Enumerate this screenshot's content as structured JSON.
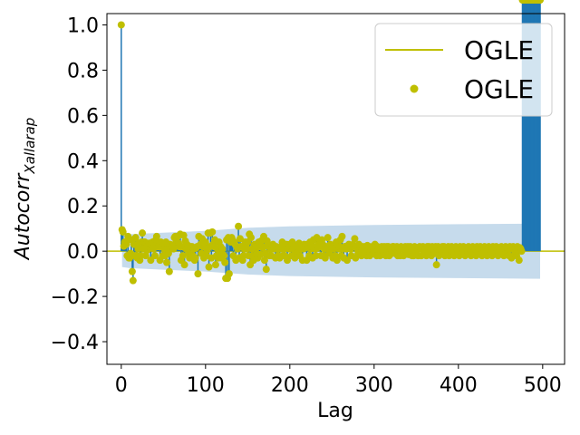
{
  "chart_data": {
    "type": "scatter",
    "xlabel": "Lag",
    "ylabel_main": "Autocorr",
    "ylabel_sub": "Xallarap",
    "xlim": [
      -17,
      526
    ],
    "ylim": [
      -0.5,
      1.05
    ],
    "xticks": [
      0,
      100,
      200,
      300,
      400,
      500
    ],
    "yticks": [
      -0.4,
      -0.2,
      0.0,
      0.2,
      0.4,
      0.6,
      0.8,
      1.0
    ],
    "ytick_labels": [
      "−0.4",
      "−0.2",
      "0.0",
      "0.2",
      "0.4",
      "0.6",
      "0.8",
      "1.0"
    ],
    "grid": false,
    "legend_position": "top-right",
    "legend": [
      {
        "label": "OGLE",
        "kind": "line"
      },
      {
        "label": "OGLE",
        "kind": "marker"
      }
    ],
    "colors": {
      "marker": "#bfbf00",
      "stem": "#1f77b4",
      "band": "#c6dbec"
    },
    "confidence_band": {
      "lags": [
        1,
        10,
        50,
        100,
        150,
        200,
        300,
        400,
        497
      ],
      "upper": [
        0.07,
        0.075,
        0.082,
        0.09,
        0.103,
        0.11,
        0.116,
        0.119,
        0.122
      ],
      "lower": [
        -0.07,
        -0.075,
        -0.082,
        -0.09,
        -0.103,
        -0.11,
        -0.116,
        -0.119,
        -0.122
      ]
    },
    "series": [
      {
        "lags": [
          0,
          1,
          2,
          3,
          4,
          5,
          6,
          7,
          8,
          9,
          10,
          11,
          12,
          13,
          14,
          15,
          16,
          17,
          18,
          19,
          20,
          21,
          22,
          23,
          24,
          25,
          26,
          27,
          28,
          29,
          30,
          31,
          32,
          33,
          34,
          35,
          36,
          37,
          38,
          39,
          40,
          41,
          42,
          43,
          44,
          45,
          46,
          47,
          48,
          49,
          50,
          51,
          52,
          53,
          54,
          55,
          56,
          57,
          58,
          59,
          60,
          61,
          62,
          63,
          64,
          65,
          66,
          67,
          68,
          69,
          70,
          71,
          72,
          73,
          74,
          75,
          76,
          77,
          78,
          79,
          80,
          81,
          82,
          83,
          84,
          85,
          86,
          87,
          88,
          89,
          90,
          91,
          92,
          93,
          94,
          95,
          96,
          97,
          98,
          99,
          100,
          101,
          102,
          103,
          104,
          105,
          106,
          107,
          108,
          109,
          110,
          111,
          112,
          113,
          114,
          115,
          116,
          117,
          118,
          119,
          120,
          121,
          122,
          123,
          124,
          125,
          126,
          127,
          128,
          129,
          130,
          131,
          132,
          133,
          134,
          135,
          136,
          137,
          138,
          139,
          140,
          141,
          142,
          143,
          144,
          145,
          146,
          147,
          148,
          149,
          150,
          151,
          152,
          153,
          154,
          155,
          156,
          157,
          158,
          159,
          160,
          161,
          162,
          163,
          164,
          165,
          166,
          167,
          168,
          169,
          170,
          171,
          172,
          173,
          174,
          175,
          176,
          177,
          178,
          179,
          180,
          181,
          182,
          183,
          184,
          185,
          186,
          187,
          188,
          189,
          190,
          191,
          192,
          193,
          194,
          195,
          196,
          197,
          198,
          199,
          200,
          201,
          202,
          203,
          204,
          205,
          206,
          207,
          208,
          209,
          210,
          211,
          212,
          213,
          214,
          215,
          216,
          217,
          218,
          219,
          220,
          221,
          222,
          223,
          224,
          225,
          226,
          227,
          228,
          229,
          230,
          231,
          232,
          233,
          234,
          235,
          236,
          237,
          238,
          239,
          240,
          241,
          242,
          243,
          244,
          245,
          246,
          247,
          248,
          249,
          250,
          251,
          252,
          253,
          254,
          255,
          256,
          257,
          258,
          259,
          260,
          261,
          262,
          263,
          264,
          265,
          266,
          267,
          268,
          269,
          270,
          271,
          272,
          273,
          274,
          275,
          276,
          277,
          278,
          279,
          280,
          281,
          282,
          283,
          284,
          285,
          286,
          287,
          288,
          289,
          290,
          291,
          292,
          293,
          294,
          295,
          296,
          297,
          298,
          299,
          300,
          301,
          302,
          303,
          304,
          305,
          306,
          307,
          308,
          309,
          310,
          311,
          312,
          313,
          314,
          315,
          316,
          317,
          318,
          319,
          320,
          321,
          322,
          323,
          324,
          325,
          326,
          327,
          328,
          329,
          330,
          331,
          332,
          333,
          334,
          335,
          336,
          337,
          338,
          339,
          340,
          341,
          342,
          343,
          344,
          345,
          346,
          347,
          348,
          349,
          350,
          351,
          352,
          353,
          354,
          355,
          356,
          357,
          358,
          359,
          360,
          361,
          362,
          363,
          364,
          365,
          366,
          367,
          368,
          369,
          370,
          371,
          372,
          373,
          374,
          375,
          376,
          377,
          378,
          379,
          380,
          381,
          382,
          383,
          384,
          385,
          386,
          387,
          388,
          389,
          390,
          391,
          392,
          393,
          394,
          395,
          396,
          397,
          398,
          399,
          400,
          401,
          402,
          403,
          404,
          405,
          406,
          407,
          408,
          409,
          410,
          411,
          412,
          413,
          414,
          415,
          416,
          417,
          418,
          419,
          420,
          421,
          422,
          423,
          424,
          425,
          426,
          427,
          428,
          429,
          430,
          431,
          432,
          433,
          434,
          435,
          436,
          437,
          438,
          439,
          440,
          441,
          442,
          443,
          444,
          445,
          446,
          447,
          448,
          449,
          450,
          451,
          452,
          453,
          454,
          455,
          456,
          457,
          458,
          459,
          460,
          461,
          462,
          463,
          464,
          465,
          466,
          467,
          468,
          469,
          470,
          471,
          472,
          473,
          474,
          475,
          476,
          477,
          478,
          479,
          480,
          481,
          482,
          483,
          484,
          485,
          486,
          487,
          488,
          489,
          490,
          491,
          492,
          493,
          494,
          495,
          496,
          497
        ],
        "values": [
          1,
          0.095,
          0.085,
          0.022,
          0.04,
          0.04,
          0.03,
          -0.02,
          0.065,
          -0.03,
          -0.03,
          -0.01,
          0.05,
          -0.09,
          -0.13,
          0.03,
          -0.02,
          0.06,
          -0.02,
          -0.03,
          0.01,
          0.035,
          -0.04,
          -0.02,
          0.04,
          0.08,
          0.01,
          0.04,
          0.04,
          -0.02,
          0.035,
          0.005,
          0.02,
          0.035,
          0.03,
          -0.04,
          0.02,
          0.04,
          0.01,
          0.035,
          -0.02,
          0.05,
          0.065,
          0.02,
          0.02,
          0.02,
          -0.04,
          0.04,
          0.02,
          -0.02,
          0.035,
          0.01,
          -0.02,
          0.04,
          -0.05,
          0.01,
          -0.01,
          -0.09,
          0.03,
          0.01,
          0.02,
          0.02,
          0.01,
          0.06,
          0.065,
          0.04,
          0.035,
          0.065,
          0.035,
          0.02,
          0.075,
          -0.04,
          0.02,
          -0.02,
          0.07,
          -0.06,
          0.045,
          0.01,
          0.03,
          0.02,
          -0.01,
          -0.03,
          0.02,
          -0.02,
          0.02,
          -0.02,
          0.01,
          -0.04,
          -0.03,
          0.015,
          0.02,
          -0.1,
          0.065,
          0.025,
          0.03,
          -0.01,
          0.055,
          0.02,
          -0.03,
          0.02,
          0.04,
          -0.02,
          0.005,
          0.08,
          -0.07,
          0.02,
          0.08,
          -0.03,
          0.085,
          0.03,
          0.02,
          0.05,
          -0.06,
          -0.02,
          0.01,
          -0.03,
          0.04,
          -0.01,
          0.02,
          -0.03,
          0.01,
          -0.015,
          -0.02,
          -0.05,
          -0.12,
          0.05,
          -0.12,
          0.06,
          -0.1,
          0.045,
          0.04,
          0.06,
          0.05,
          -0.02,
          0.04,
          0.03,
          -0.04,
          0.02,
          0.01,
          0.11,
          -0.03,
          0.055,
          0.02,
          0.02,
          -0.04,
          -0.02,
          0.01,
          0.04,
          0.02,
          0.01,
          0.04,
          -0.02,
          0.075,
          -0.06,
          0.06,
          0.01,
          -0.02,
          -0.04,
          0.03,
          0.01,
          0.02,
          -0.01,
          -0.03,
          0.04,
          0.02,
          -0.015,
          0.045,
          0.02,
          0.015,
          0.065,
          -0.04,
          -0.01,
          -0.08,
          0.045,
          0.03,
          0.02,
          -0.02,
          0.01,
          -0.02,
          0.02,
          0.03,
          0.01,
          0.02,
          -0.03,
          0.02,
          0.01,
          -0.02,
          0.015,
          -0.03,
          0.01,
          0.02,
          0.04,
          -0.02,
          0.01,
          -0.02,
          0.015,
          0.03,
          -0.04,
          0.02,
          0.01,
          0.03,
          0.02,
          -0.02,
          0.04,
          0.01,
          0.02,
          -0.03,
          0.015,
          -0.01,
          0.02,
          0.03,
          0.035,
          -0.02,
          0.01,
          0.02,
          -0.04,
          0.01,
          0.03,
          0.02,
          0.015,
          -0.04,
          0.03,
          0.02,
          -0.02,
          0.04,
          0.01,
          0.02,
          -0.03,
          0.05,
          0.02,
          0.01,
          -0.02,
          0.06,
          0.015,
          0.03,
          0.02,
          0.04,
          -0.02,
          0.05,
          0.03,
          -0.02,
          0.01,
          -0.03,
          0.02,
          0.01,
          0.06,
          0.02,
          -0.01,
          0.03,
          0.02,
          0.02,
          -0.03,
          0.01,
          0.02,
          -0.02,
          0.04,
          -0.04,
          0.02,
          0.01,
          0.02,
          0.05,
          -0.02,
          0.065,
          0.01,
          -0.03,
          0.02,
          0.02,
          0.01,
          -0.04,
          0.02,
          0.03,
          0.015,
          0.01,
          -0.02,
          0.02,
          0.03,
          0.02,
          0.055,
          -0.03,
          0.02,
          0.01,
          -0.01,
          0.03,
          0.015,
          0.02,
          -0.02,
          0.01,
          0.02,
          0.015,
          -0.01,
          0.02,
          -0.02,
          0.025,
          0.01,
          0.02,
          -0.02,
          0.015,
          0.01,
          0.02,
          -0.01,
          0.025,
          0.03,
          0.01,
          -0.02,
          0.02,
          0.01,
          0.015,
          -0.02,
          0.01,
          0.02,
          0.01,
          -0.015,
          0.02,
          0.01,
          -0.02,
          0.02,
          0.01,
          0.02,
          -0.02,
          0.015,
          0.01,
          -0.01,
          0.02,
          0.02,
          0.015,
          -0.01,
          0.01,
          0.02,
          -0.02,
          0.015,
          0.01,
          -0.02,
          0.02,
          0.01,
          0.015,
          -0.02,
          0.01,
          0.02,
          0.01,
          -0.01,
          0.02,
          -0.015,
          0.01,
          0.02,
          0.015,
          -0.02,
          0.01,
          -0.02,
          0.02,
          0.01,
          -0.01,
          0.015,
          -0.02,
          0.01,
          0.02,
          0.015,
          -0.02,
          0.01,
          0.02,
          -0.01,
          0.015,
          0.01,
          -0.02,
          0.02,
          0.01,
          0.02,
          -0.01,
          0.015,
          -0.02,
          0.02,
          0.01,
          0.015,
          -0.01,
          0.02,
          -0.06,
          0.01,
          0.02,
          -0.02,
          0.015,
          0.01,
          -0.01,
          0.02,
          0.01,
          0.02,
          -0.02,
          0.015,
          0.01,
          -0.01,
          0.02,
          -0.02,
          0.015,
          0.01,
          0.02,
          -0.01,
          0.015,
          -0.02,
          0.01,
          0.02,
          0.015,
          -0.01,
          0.01,
          -0.02,
          0.02,
          0.01,
          0.015,
          -0.01,
          0.02,
          0.01,
          -0.02,
          0.015,
          0.01,
          -0.01,
          0.02,
          0.01,
          0.015,
          -0.02,
          0.01,
          0.02,
          -0.01,
          0.015,
          0.01,
          -0.02,
          0.02,
          0.01,
          0.015,
          -0.01,
          0.02,
          0.01,
          -0.02,
          0.015,
          0.01,
          0.02,
          -0.01,
          0.015,
          -0.02,
          0.01,
          0.02,
          0.01,
          -0.01,
          0.015,
          -0.02,
          0.02,
          0.01,
          0.015,
          -0.01,
          0.02,
          0.01,
          -0.02,
          0.015,
          0.01,
          -0.01,
          0.02,
          0.01,
          0.015,
          -0.02,
          0.01,
          0.02,
          -0.01,
          0.015,
          0.01,
          -0.02,
          0.02,
          0.01,
          -0.03,
          0.015,
          0.02,
          0.01,
          -0.01,
          0.015,
          -0.02,
          0.02,
          0.01,
          -0.04,
          0.015,
          0.01,
          0
        ]
      }
    ]
  }
}
